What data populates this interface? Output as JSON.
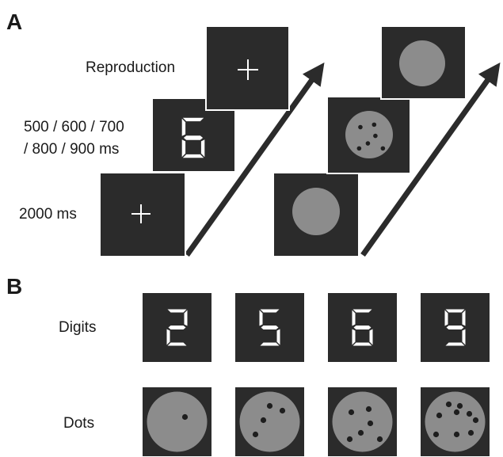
{
  "panel_a": {
    "label": "A",
    "durations": {
      "reproduction": "Reproduction",
      "stimulus_line1": "500 / 600 / 700",
      "stimulus_line2": "/ 800 / 900 ms",
      "fixation": "2000 ms"
    },
    "digit_shown": "6",
    "dots_shown": 6
  },
  "panel_b": {
    "label": "B",
    "rows": {
      "digits": "Digits",
      "dots": "Dots"
    },
    "digit_stimuli": [
      "2",
      "5",
      "6",
      "9"
    ],
    "dot_counts": [
      1,
      4,
      6,
      9
    ]
  },
  "colors": {
    "screen": "#2b2b2b",
    "disc": "#8c8c8c",
    "segment": "#ffffff",
    "dot": "#1e1e1e"
  }
}
